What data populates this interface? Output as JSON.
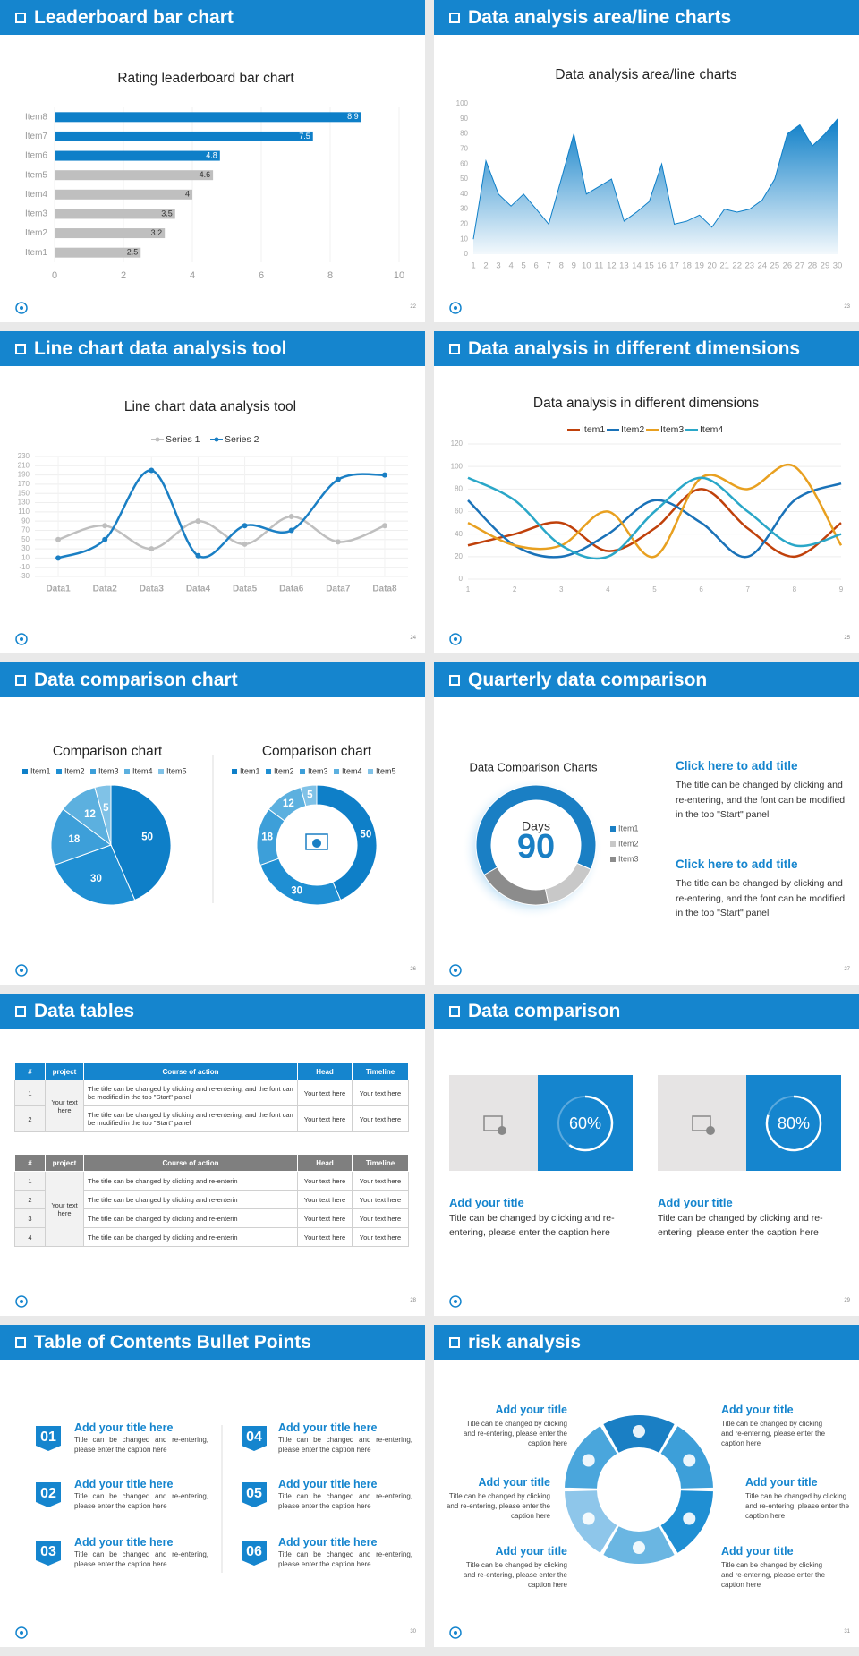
{
  "chart_data": [
    {
      "type": "bar",
      "orientation": "horizontal",
      "title": "Rating leaderboard bar chart",
      "categories": [
        "Item1",
        "Item2",
        "Item3",
        "Item4",
        "Item5",
        "Item6",
        "Item7",
        "Item8"
      ],
      "values": [
        2.5,
        3.2,
        3.5,
        4,
        4.6,
        4.8,
        7.5,
        8.9
      ],
      "colors": [
        "#bfbfbf",
        "#bfbfbf",
        "#bfbfbf",
        "#bfbfbf",
        "#bfbfbf",
        "#0e7fc8",
        "#0e7fc8",
        "#0e7fc8"
      ],
      "xlim": [
        0,
        10
      ],
      "xticks": [
        0,
        2,
        4,
        6,
        8,
        10
      ],
      "grid": true,
      "data_labels": true
    },
    {
      "type": "area",
      "title": "Data analysis area/line charts",
      "x": [
        1,
        2,
        3,
        4,
        5,
        6,
        7,
        8,
        9,
        10,
        11,
        12,
        13,
        14,
        15,
        16,
        17,
        18,
        19,
        20,
        21,
        22,
        23,
        24,
        25,
        26,
        27,
        28,
        29,
        30
      ],
      "values": [
        10,
        62,
        40,
        32,
        40,
        30,
        20,
        50,
        80,
        40,
        45,
        50,
        22,
        28,
        35,
        60,
        20,
        22,
        26,
        18,
        30,
        28,
        30,
        36,
        50,
        80,
        86,
        72,
        80,
        90
      ],
      "color": "#0e7fc8",
      "xlim": [
        1,
        30
      ],
      "xticks": [
        1,
        2,
        3,
        4,
        5,
        6,
        7,
        8,
        9,
        10,
        11,
        12,
        13,
        14,
        15,
        16,
        17,
        18,
        19,
        20,
        21,
        22,
        23,
        24,
        25,
        26,
        27,
        28,
        29,
        30
      ],
      "ylim": [
        0,
        100
      ],
      "yticks": [
        0,
        10,
        20,
        30,
        40,
        50,
        60,
        70,
        80,
        90,
        100
      ],
      "grid": false
    },
    {
      "type": "line",
      "smooth": true,
      "markers": true,
      "title": "Line chart data analysis tool",
      "categories": [
        "Data1",
        "Data2",
        "Data3",
        "Data4",
        "Data5",
        "Data6",
        "Data7",
        "Data8"
      ],
      "series": [
        {
          "name": "Series 1",
          "color": "#bfbfbf",
          "values": [
            50,
            80,
            30,
            90,
            40,
            100,
            45,
            80
          ]
        },
        {
          "name": "Series 2",
          "color": "#1a7fc4",
          "values": [
            10,
            50,
            200,
            15,
            80,
            70,
            180,
            190
          ]
        }
      ],
      "ylim": [
        -30,
        230
      ],
      "yticks": [
        -30,
        -10,
        10,
        30,
        50,
        70,
        90,
        110,
        130,
        150,
        170,
        190,
        210,
        230
      ],
      "grid": true,
      "legend": "top"
    },
    {
      "type": "line",
      "smooth": true,
      "markers": false,
      "title": "Data analysis in different dimensions",
      "x": [
        1,
        2,
        3,
        4,
        5,
        6,
        7,
        8,
        9
      ],
      "series": [
        {
          "name": "Item1",
          "color": "#c0410b",
          "values": [
            30,
            40,
            50,
            25,
            45,
            80,
            45,
            20,
            50
          ]
        },
        {
          "name": "Item2",
          "color": "#1a72b8",
          "values": [
            70,
            30,
            20,
            40,
            70,
            50,
            20,
            70,
            85
          ]
        },
        {
          "name": "Item3",
          "color": "#e8a020",
          "values": [
            50,
            30,
            30,
            60,
            20,
            90,
            80,
            100,
            30
          ]
        },
        {
          "name": "Item4",
          "color": "#2aa7c8",
          "values": [
            90,
            70,
            30,
            20,
            60,
            90,
            60,
            30,
            40
          ]
        }
      ],
      "xlim": [
        1,
        9
      ],
      "xticks": [
        1,
        2,
        3,
        4,
        5,
        6,
        7,
        8,
        9
      ],
      "ylim": [
        0,
        120
      ],
      "yticks": [
        0,
        20,
        40,
        60,
        80,
        100,
        120
      ],
      "grid": true,
      "legend": "top"
    },
    {
      "type": "pie",
      "title": "Comparison chart",
      "categories": [
        "Item1",
        "Item2",
        "Item3",
        "Item4",
        "Item5"
      ],
      "values": [
        50,
        30,
        18,
        12,
        5
      ],
      "colors": [
        "#0e7fc8",
        "#1f8fd3",
        "#3d9fd9",
        "#5cb0df",
        "#80c2e7"
      ],
      "legend": "top",
      "data_labels": true
    },
    {
      "type": "donut",
      "title": "Comparison chart",
      "categories": [
        "Item1",
        "Item2",
        "Item3",
        "Item4",
        "Item5"
      ],
      "values": [
        50,
        30,
        18,
        12,
        5
      ],
      "colors": [
        "#0e7fc8",
        "#1f8fd3",
        "#3d9fd9",
        "#5cb0df",
        "#80c2e7"
      ],
      "legend": "top",
      "data_labels": true
    },
    {
      "type": "donut",
      "title": "Data Comparison Charts",
      "categories": [
        "Item1",
        "Item2",
        "Item3"
      ],
      "values": [
        65,
        15,
        20
      ],
      "colors": [
        "#1a7fc4",
        "#c8c8c8",
        "#8c8c8c"
      ],
      "legend": "right",
      "data_labels": false,
      "annotations": [
        "Days",
        "90"
      ]
    }
  ],
  "slides": [
    {
      "title": "Leaderboard bar chart",
      "page": "22"
    },
    {
      "title": "Data analysis area/line charts",
      "page": "23"
    },
    {
      "title": "Line chart data analysis tool",
      "page": "24"
    },
    {
      "title": "Data analysis in different dimensions",
      "page": "25"
    },
    {
      "title": "Data comparison chart",
      "page": "26"
    },
    {
      "title": "Quarterly data comparison",
      "page": "27",
      "blocks": [
        {
          "heading": "Click here to add title",
          "text": "The title can be changed by clicking and re-entering, and the font can be modified in the top \"Start\" panel"
        },
        {
          "heading": "Click here to add title",
          "text": "The title can be changed by clicking and re-entering, and the font can be modified in the top \"Start\" panel"
        }
      ]
    },
    {
      "title": "Data tables",
      "page": "28",
      "tables": [
        {
          "header": [
            "#",
            "project",
            "Course of action",
            "Head",
            "Timeline"
          ],
          "project": "Your text here",
          "rows": [
            [
              "1",
              "The title can be changed by clicking and re-entering, and the font can be modified in the top \"Start\" panel",
              "Your text here",
              "Your text here"
            ],
            [
              "2",
              "The title can be changed by clicking and re-entering, and the font can be modified in the top \"Start\" panel",
              "Your text here",
              "Your text here"
            ]
          ]
        },
        {
          "header": [
            "#",
            "project",
            "Course of action",
            "Head",
            "Timeline"
          ],
          "project": "Your text here",
          "rows": [
            [
              "1",
              "The title can be changed by clicking and re-enterin",
              "Your text here",
              "Your text here"
            ],
            [
              "2",
              "The title can be changed by clicking and re-enterin",
              "Your text here",
              "Your text here"
            ],
            [
              "3",
              "The title can be changed by clicking and re-enterin",
              "Your text here",
              "Your text here"
            ],
            [
              "4",
              "The title can be changed by clicking and re-enterin",
              "Your text here",
              "Your text here"
            ]
          ]
        }
      ]
    },
    {
      "title": "Data comparison",
      "page": "29",
      "cards": [
        {
          "value": 60,
          "label": "60%",
          "heading": "Add your title",
          "text": "Title can be changed by clicking and re-entering, please enter the caption here"
        },
        {
          "value": 80,
          "label": "80%",
          "heading": "Add your title",
          "text": "Title can be changed by clicking and re-entering, please enter the caption here"
        }
      ]
    },
    {
      "title": "Table of Contents Bullet Points",
      "page": "30",
      "items": [
        {
          "number": "01",
          "heading": "Add your title here",
          "text": "Title can be changed and re-entering, please enter the caption here"
        },
        {
          "number": "02",
          "heading": "Add your title here",
          "text": "Title can be changed and re-entering, please enter the caption here"
        },
        {
          "number": "03",
          "heading": "Add your title here",
          "text": "Title can be changed and re-entering, please enter the caption here"
        },
        {
          "number": "04",
          "heading": "Add your title here",
          "text": "Title can be changed and re-entering, please enter the caption here"
        },
        {
          "number": "05",
          "heading": "Add your title here",
          "text": "Title can be changed and re-entering, please enter the caption here"
        },
        {
          "number": "06",
          "heading": "Add your title here",
          "text": "Title can be changed and re-entering, please enter the caption here"
        }
      ]
    },
    {
      "title": "risk analysis",
      "page": "31",
      "items": [
        {
          "heading": "Add your title",
          "text": "Title can be changed by clicking and re-entering, please enter the caption here"
        },
        {
          "heading": "Add your title",
          "text": "Title can be changed by clicking and re-entering, please enter the caption here"
        },
        {
          "heading": "Add your title",
          "text": "Title can be changed by clicking and re-entering, please enter the caption here"
        },
        {
          "heading": "Add your title",
          "text": "Title can be changed by clicking and re-entering, please enter the caption here"
        },
        {
          "heading": "Add your title",
          "text": "Title can be changed by clicking and re-entering, please enter the caption here"
        },
        {
          "heading": "Add your title",
          "text": "Title can be changed by clicking and re-entering, please enter the caption here"
        }
      ]
    }
  ]
}
